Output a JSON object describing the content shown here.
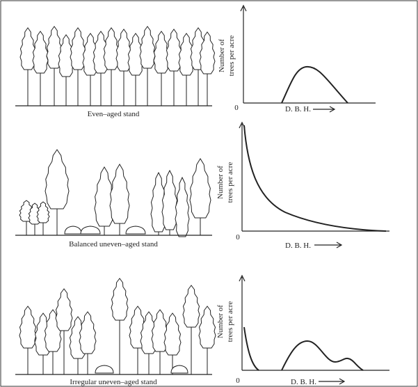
{
  "panels": [
    {
      "caption": "Even–aged stand",
      "y_label": [
        "Number of",
        "trees per acre"
      ],
      "origin": "0",
      "x_label": "D. B. H."
    },
    {
      "caption": "Balanced uneven–aged stand",
      "y_label": [
        "Number of",
        "trees per acre"
      ],
      "origin": "0",
      "x_label": "D. B. H."
    },
    {
      "caption": "Irregular uneven–aged stand",
      "y_label": [
        "Number of",
        "trees per acre"
      ],
      "origin": "0",
      "x_label": "D. B. H."
    }
  ]
}
